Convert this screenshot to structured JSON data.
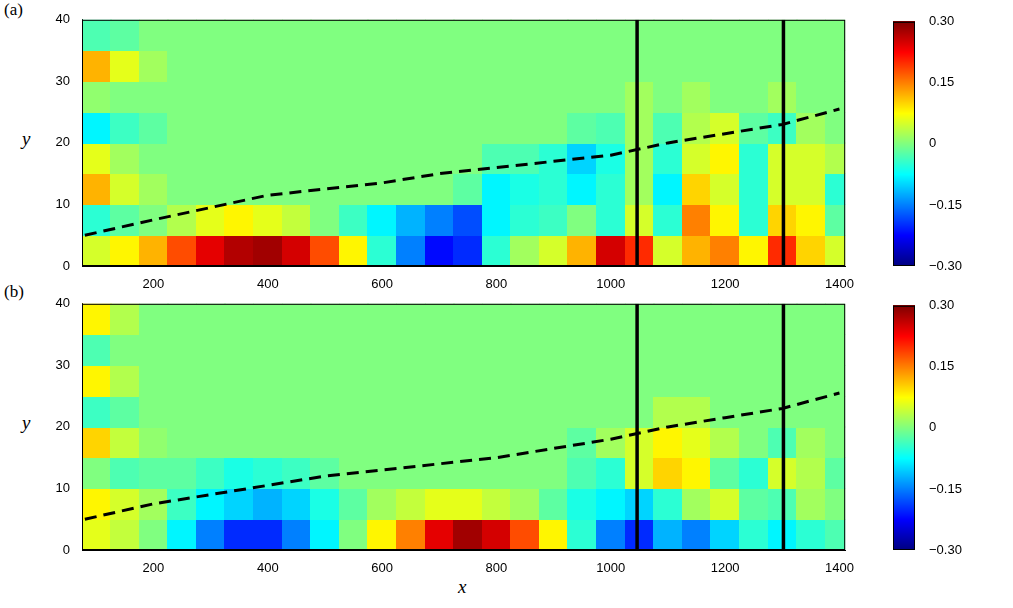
{
  "chart_data": [
    {
      "type": "heatmap",
      "title": "(a)",
      "y_label": "y",
      "xlim": [
        75,
        1410
      ],
      "xticks": [
        200,
        400,
        600,
        800,
        1000,
        1200,
        1400
      ],
      "ylim": [
        0,
        40
      ],
      "yticks": [
        0,
        10,
        20,
        30,
        40
      ],
      "grid": false,
      "x": [
        100,
        150,
        200,
        250,
        300,
        350,
        400,
        450,
        500,
        550,
        600,
        650,
        700,
        750,
        800,
        850,
        900,
        950,
        1000,
        1050,
        1100,
        1150,
        1200,
        1250,
        1300,
        1350,
        1400
      ],
      "y": [
        2.5,
        7.5,
        12.5,
        17.5,
        22.5,
        27.5,
        32.5,
        37.5
      ],
      "cells": [
        [
          0.05,
          0.08,
          0.12,
          0.18,
          0.24,
          0.27,
          0.28,
          0.25,
          0.18,
          0.08,
          -0.05,
          -0.15,
          -0.22,
          -0.2,
          -0.05,
          0.02,
          0.05,
          0.12,
          0.25,
          0.2,
          0.05,
          0.12,
          0.15,
          0.08,
          0.2,
          0.1,
          0.05
        ],
        [
          -0.05,
          -0.02,
          0,
          0.03,
          0.06,
          0.08,
          0.06,
          0.04,
          0,
          -0.04,
          -0.08,
          -0.12,
          -0.15,
          -0.18,
          -0.08,
          -0.05,
          -0.04,
          0,
          -0.05,
          0.05,
          -0.05,
          0.15,
          0.08,
          -0.05,
          0.1,
          0.08,
          -0.02
        ],
        [
          0.12,
          0.05,
          0.02,
          0,
          0,
          0,
          0,
          0,
          0,
          0,
          0,
          0,
          0,
          -0.02,
          -0.08,
          -0.06,
          -0.05,
          -0.08,
          -0.05,
          0.02,
          -0.08,
          0.1,
          0.05,
          -0.05,
          0.05,
          0.05,
          -0.05
        ],
        [
          0.06,
          0.02,
          0,
          0,
          0,
          0,
          0,
          0,
          0,
          0,
          0,
          0,
          0,
          0,
          -0.03,
          -0.03,
          -0.05,
          -0.1,
          -0.06,
          0.02,
          -0.05,
          0.05,
          0.08,
          -0.05,
          0.05,
          0.05,
          0.03
        ],
        [
          -0.08,
          -0.04,
          -0.02,
          0,
          0,
          0,
          0,
          0,
          0,
          0,
          0,
          0,
          0,
          0,
          0,
          0,
          0,
          -0.02,
          -0.03,
          0.02,
          -0.03,
          0.03,
          0.05,
          -0.02,
          -0.04,
          0.02,
          0
        ],
        [
          0.01,
          0,
          0,
          0,
          0,
          0,
          0,
          0,
          0,
          0,
          0,
          0,
          0,
          0,
          0,
          0,
          0,
          0,
          0,
          0.02,
          0,
          0.02,
          0,
          0,
          0.02,
          0,
          0
        ],
        [
          0.12,
          0.06,
          0.02,
          0,
          0,
          0,
          0,
          0,
          0,
          0,
          0,
          0,
          0,
          0,
          0,
          0,
          0,
          0,
          0,
          0,
          0,
          0,
          0,
          0,
          0,
          0,
          0
        ],
        [
          -0.03,
          -0.02,
          0,
          0,
          0,
          0,
          0,
          0,
          0,
          0,
          0,
          0,
          0,
          0,
          0,
          0,
          0,
          0,
          0,
          0,
          0,
          0,
          0,
          0,
          0,
          0,
          0
        ]
      ],
      "colorbar": {
        "range": [
          -0.3,
          0.3
        ],
        "ticks": [
          {
            "value": -0.3,
            "label": "−0.30"
          },
          {
            "value": -0.15,
            "label": "−0.15"
          },
          0,
          0.15,
          {
            "value": 0.3,
            "label": "0.30"
          }
        ]
      },
      "line": {
        "x": [
          80,
          200,
          300,
          400,
          500,
          600,
          700,
          800,
          900,
          1000,
          1100,
          1200,
          1300,
          1400
        ],
        "y": [
          5,
          7.5,
          9.5,
          11.5,
          12.5,
          13.5,
          15,
          16,
          17,
          18,
          20,
          21.5,
          23,
          25.5
        ],
        "color": "#000000",
        "line_style": "dashed"
      },
      "vlines": {
        "x": [
          1046,
          1302
        ],
        "color": "#000000"
      }
    },
    {
      "type": "heatmap",
      "title": "(b)",
      "x_label": "x",
      "y_label": "y",
      "xlim": [
        75,
        1410
      ],
      "xticks": [
        200,
        400,
        600,
        800,
        1000,
        1200,
        1400
      ],
      "ylim": [
        0,
        40
      ],
      "yticks": [
        0,
        10,
        20,
        30,
        40
      ],
      "grid": false,
      "x": [
        100,
        150,
        200,
        250,
        300,
        350,
        400,
        450,
        500,
        550,
        600,
        650,
        700,
        750,
        800,
        850,
        900,
        950,
        1000,
        1050,
        1100,
        1150,
        1200,
        1250,
        1300,
        1350,
        1400
      ],
      "y": [
        2.5,
        7.5,
        12.5,
        17.5,
        22.5,
        27.5,
        32.5,
        37.5
      ],
      "cells": [
        [
          0.06,
          0.04,
          0,
          -0.08,
          -0.15,
          -0.2,
          -0.2,
          -0.15,
          -0.08,
          0,
          0.08,
          0.15,
          0.24,
          0.28,
          0.25,
          0.18,
          0.08,
          -0.05,
          -0.15,
          -0.2,
          -0.12,
          -0.15,
          -0.1,
          -0.05,
          -0.08,
          -0.05,
          -0.03
        ],
        [
          0.08,
          0.05,
          0.02,
          -0.04,
          -0.08,
          -0.1,
          -0.12,
          -0.1,
          -0.06,
          -0.02,
          0.02,
          0.04,
          0.06,
          0.06,
          0.04,
          0.02,
          -0.02,
          -0.06,
          -0.08,
          -0.1,
          -0.05,
          0.02,
          0.05,
          -0.02,
          -0.03,
          0.02,
          0
        ],
        [
          0,
          -0.03,
          -0.02,
          -0.02,
          -0.04,
          -0.06,
          -0.05,
          -0.04,
          -0.02,
          0,
          0,
          0,
          0,
          0,
          0,
          0,
          0,
          -0.03,
          -0.05,
          0.05,
          0.1,
          0.08,
          -0.02,
          -0.05,
          0.05,
          0.03,
          -0.02
        ],
        [
          0.1,
          0.04,
          0.01,
          0,
          0,
          0,
          0,
          0,
          0,
          0,
          0,
          0,
          0,
          0,
          0,
          0,
          0,
          -0.02,
          0.02,
          0.05,
          0.08,
          0.06,
          0.03,
          0,
          -0.03,
          0.02,
          0
        ],
        [
          -0.04,
          -0.02,
          0,
          0,
          0,
          0,
          0,
          0,
          0,
          0,
          0,
          0,
          0,
          0,
          0,
          0,
          0,
          0,
          0,
          0,
          0.03,
          0.03,
          0,
          0,
          0,
          0,
          0
        ],
        [
          0.08,
          0.03,
          0,
          0,
          0,
          0,
          0,
          0,
          0,
          0,
          0,
          0,
          0,
          0,
          0,
          0,
          0,
          0,
          0,
          0,
          0,
          0,
          0,
          0,
          0,
          0,
          0
        ],
        [
          -0.03,
          0,
          0,
          0,
          0,
          0,
          0,
          0,
          0,
          0,
          0,
          0,
          0,
          0,
          0,
          0,
          0,
          0,
          0,
          0,
          0,
          0,
          0,
          0,
          0,
          0,
          0
        ],
        [
          0.08,
          0.03,
          0,
          0,
          0,
          0,
          0,
          0,
          0,
          0,
          0,
          0,
          0,
          0,
          0,
          0,
          0,
          0,
          0,
          0,
          0,
          0,
          0,
          0,
          0,
          0,
          0
        ]
      ],
      "colorbar": {
        "range": [
          -0.3,
          0.3
        ],
        "ticks": [
          {
            "value": -0.3,
            "label": "−0.30"
          },
          {
            "value": -0.15,
            "label": "−0.15"
          },
          0,
          0.15,
          {
            "value": 0.3,
            "label": "0.30"
          }
        ]
      },
      "line": {
        "x": [
          80,
          200,
          300,
          400,
          500,
          600,
          700,
          800,
          900,
          1000,
          1100,
          1200,
          1300,
          1400
        ],
        "y": [
          5,
          7.5,
          9,
          10.5,
          12,
          13,
          14,
          15,
          16.5,
          18,
          20,
          21.5,
          23,
          25.5
        ],
        "color": "#000000",
        "line_style": "dashed"
      },
      "vlines": {
        "x": [
          1046,
          1302
        ],
        "color": "#000000"
      }
    }
  ]
}
